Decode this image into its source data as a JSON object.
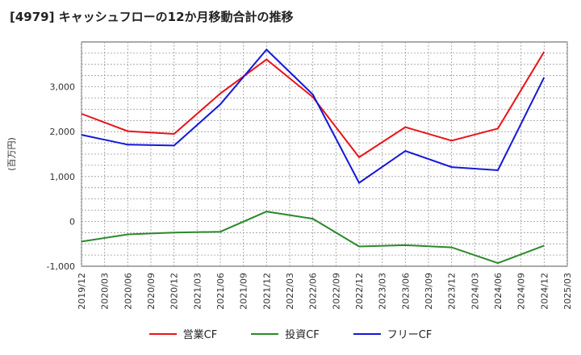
{
  "chart_data": {
    "type": "line",
    "title": "[4979]  キャッシュフローの12か月移動合計の推移",
    "ylabel": "(百万円)",
    "ylim": [
      -1000,
      4000
    ],
    "yticks": [
      -1000,
      0,
      1000,
      2000,
      3000
    ],
    "ytick_labels": [
      "-1,000",
      "0",
      "1,000",
      "2,000",
      "3,000"
    ],
    "categories": [
      "2019/12",
      "2020/03",
      "2020/06",
      "2020/09",
      "2020/12",
      "2021/03",
      "2021/06",
      "2021/09",
      "2021/12",
      "2022/03",
      "2022/06",
      "2022/09",
      "2022/12",
      "2023/03",
      "2023/06",
      "2023/09",
      "2023/12",
      "2024/03",
      "2024/06",
      "2024/09",
      "2024/12",
      "2025/03"
    ],
    "series": [
      {
        "name": "営業CF",
        "color": "#e8141a",
        "points": [
          [
            0,
            2400
          ],
          [
            2,
            2010
          ],
          [
            4,
            1950
          ],
          [
            6,
            2850
          ],
          [
            8,
            3610
          ],
          [
            10,
            2770
          ],
          [
            12,
            1430
          ],
          [
            14,
            2100
          ],
          [
            16,
            1800
          ],
          [
            18,
            2070
          ],
          [
            20,
            3780
          ]
        ]
      },
      {
        "name": "投資CF",
        "color": "#2a8a2a",
        "points": [
          [
            0,
            -450
          ],
          [
            2,
            -290
          ],
          [
            4,
            -250
          ],
          [
            6,
            -230
          ],
          [
            8,
            220
          ],
          [
            10,
            60
          ],
          [
            12,
            -560
          ],
          [
            14,
            -530
          ],
          [
            16,
            -580
          ],
          [
            18,
            -930
          ],
          [
            20,
            -540
          ]
        ]
      },
      {
        "name": "フリーCF",
        "color": "#1418d8",
        "points": [
          [
            0,
            1930
          ],
          [
            2,
            1710
          ],
          [
            4,
            1690
          ],
          [
            6,
            2610
          ],
          [
            8,
            3830
          ],
          [
            10,
            2830
          ],
          [
            12,
            860
          ],
          [
            14,
            1570
          ],
          [
            16,
            1210
          ],
          [
            18,
            1140
          ],
          [
            20,
            3210
          ]
        ]
      }
    ],
    "grid": true,
    "legend": "bottom"
  }
}
